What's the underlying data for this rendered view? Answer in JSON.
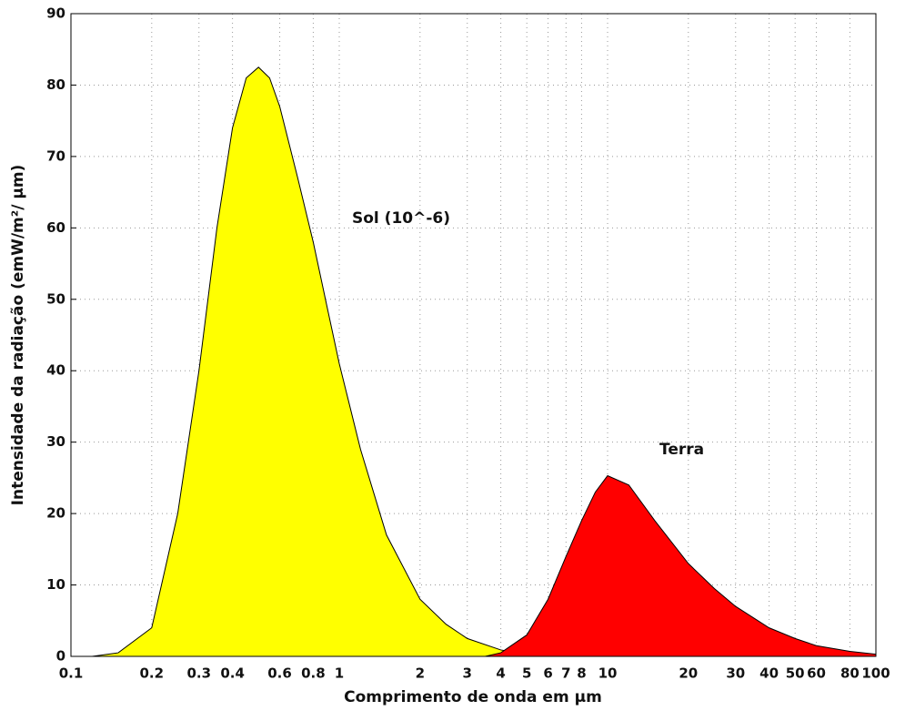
{
  "chart_data": {
    "type": "area",
    "xlabel": "Comprimento de onda em µm",
    "ylabel": "Intensidade da radiação (emW/m²/ µm)",
    "xscale": "log",
    "xlim": [
      0.1,
      100
    ],
    "ylim": [
      0,
      90
    ],
    "xticks": [
      0.1,
      0.2,
      0.3,
      0.4,
      0.6,
      0.8,
      1,
      2,
      3,
      4,
      5,
      6,
      7,
      8,
      10,
      20,
      30,
      40,
      50,
      60,
      80,
      100
    ],
    "yticks": [
      0,
      10,
      20,
      30,
      40,
      50,
      60,
      70,
      80,
      90
    ],
    "grid": true,
    "series": [
      {
        "name": "Sol (10^-6)",
        "color": "#ffff00",
        "x": [
          0.12,
          0.15,
          0.2,
          0.25,
          0.3,
          0.35,
          0.4,
          0.45,
          0.5,
          0.55,
          0.6,
          0.7,
          0.8,
          0.9,
          1,
          1.2,
          1.5,
          2,
          2.5,
          3,
          4,
          5
        ],
        "values": [
          0,
          0.5,
          4,
          20,
          40,
          60,
          74,
          81,
          82.5,
          81,
          77,
          67,
          58,
          49,
          41,
          29,
          17,
          8,
          4.5,
          2.5,
          0.9,
          0.3
        ]
      },
      {
        "name": "Terra",
        "color": "#ff0000",
        "x": [
          3.5,
          4,
          5,
          6,
          7,
          8,
          9,
          10,
          12,
          15,
          20,
          25,
          30,
          40,
          50,
          60,
          80,
          100
        ],
        "values": [
          0,
          0.5,
          3,
          8,
          14,
          19,
          23,
          25.3,
          24,
          19,
          13,
          9.5,
          7,
          4,
          2.5,
          1.5,
          0.7,
          0.3
        ]
      }
    ]
  }
}
